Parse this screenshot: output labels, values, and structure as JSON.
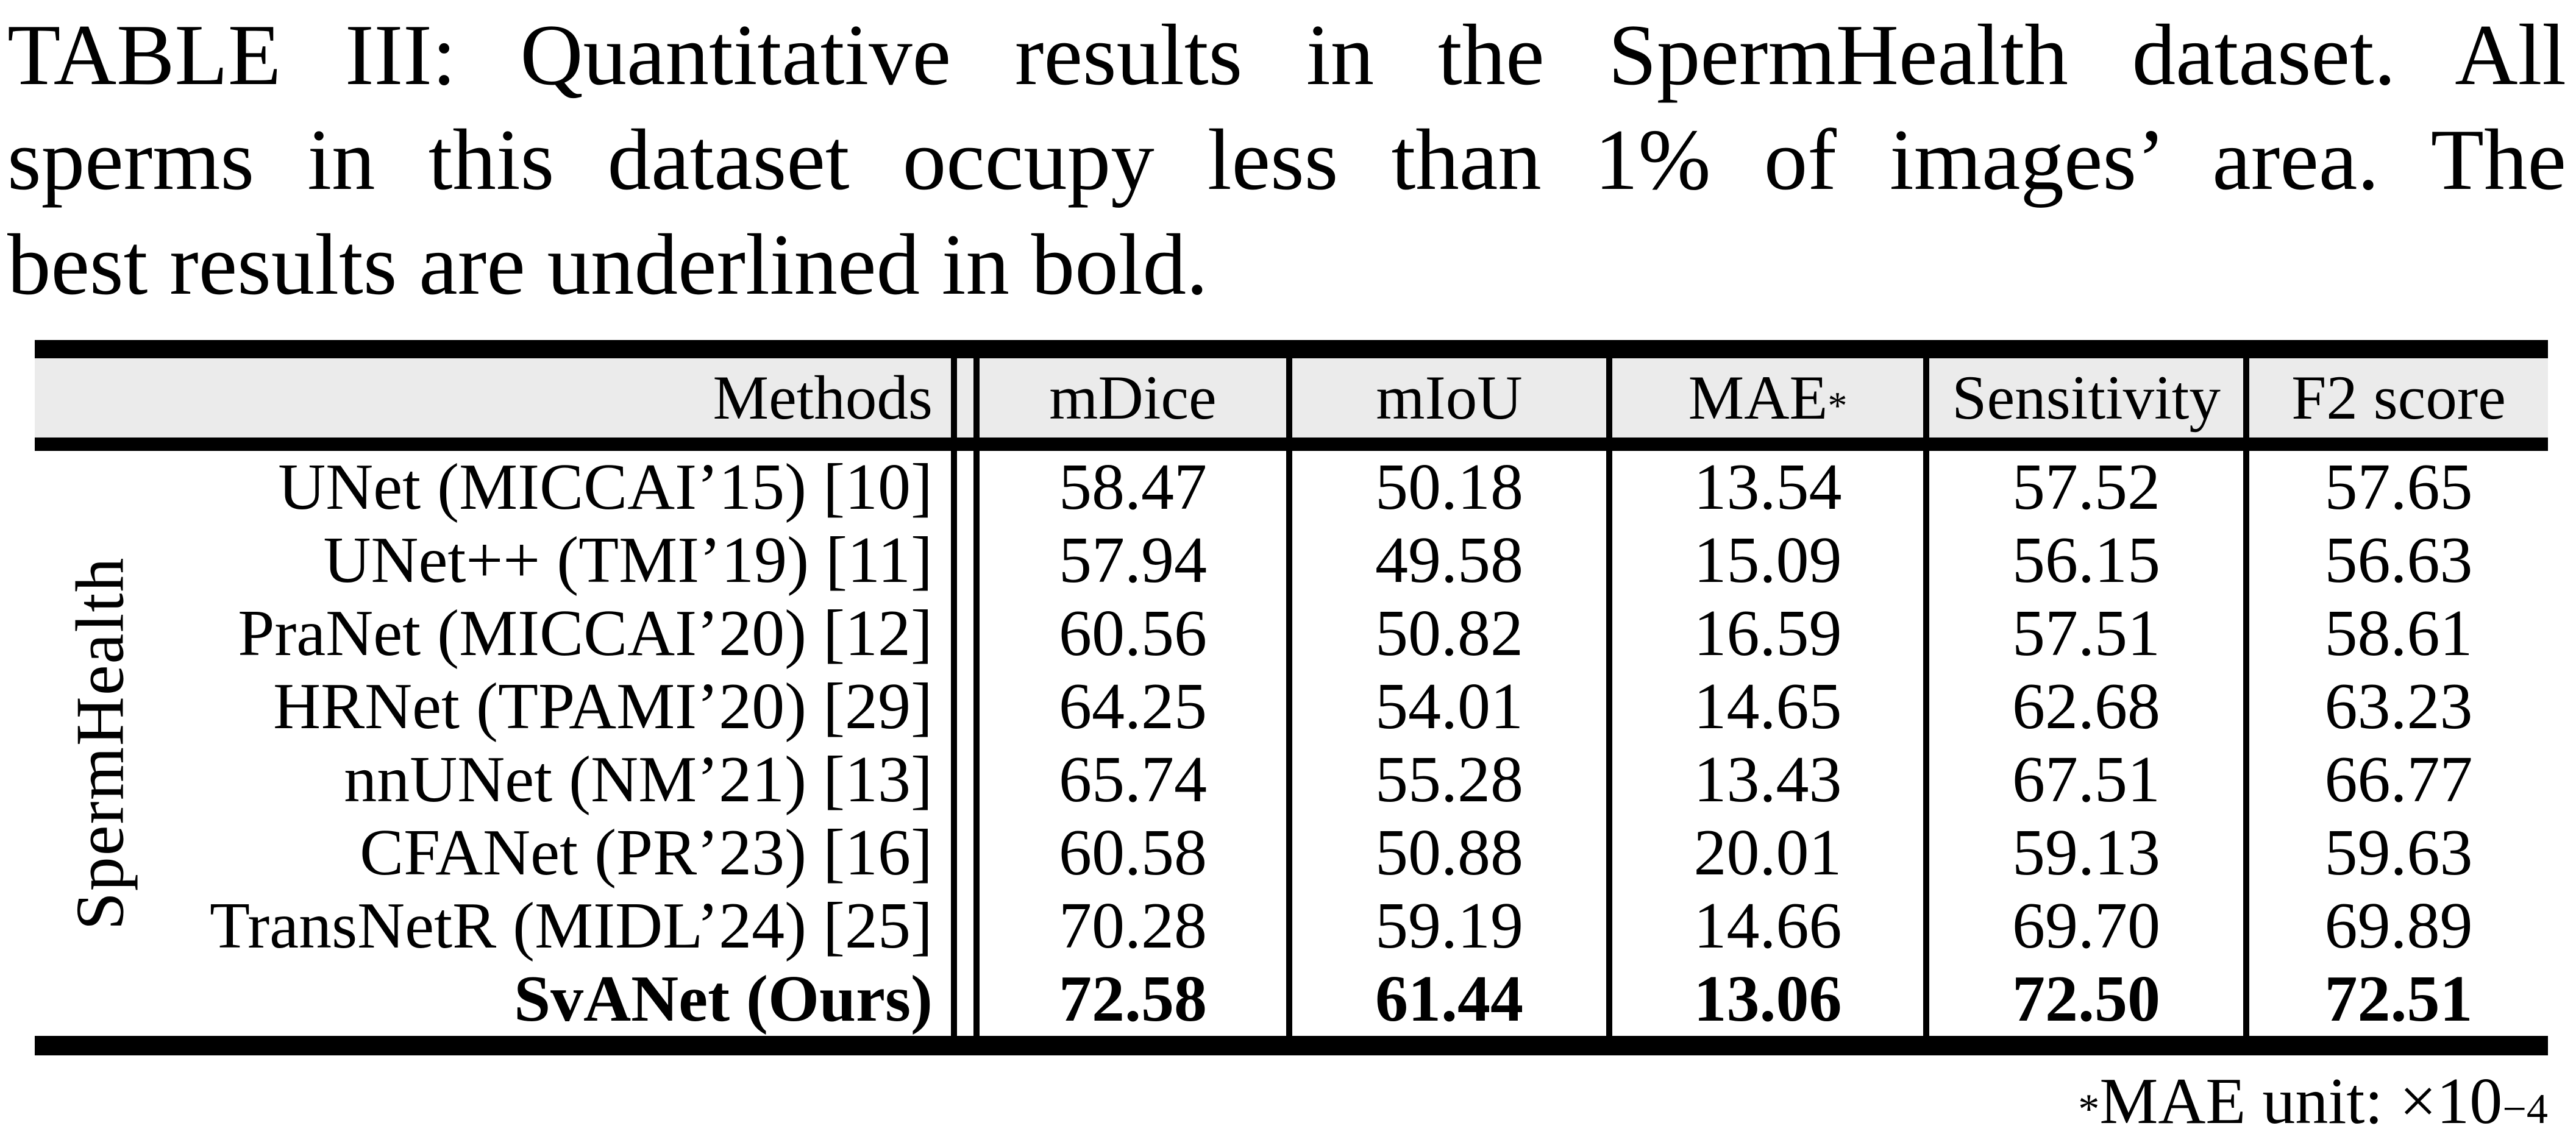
{
  "caption": {
    "lines": [
      "TABLE III: Quantitative results in the SpermHealth dataset. All",
      "sperms in this dataset occupy less than 1% of images’ area. The",
      "best results are underlined in bold."
    ]
  },
  "table": {
    "dataset_label": "SpermHealth",
    "columns": [
      {
        "label": "Methods"
      },
      {
        "label": "mDice"
      },
      {
        "label": "mIoU"
      },
      {
        "label": "MAE",
        "sup": "*"
      },
      {
        "label": "Sensitivity"
      },
      {
        "label": "F2 score"
      }
    ],
    "rows": [
      {
        "method": "UNet (MICCAI’15) [10]",
        "bold": false,
        "values": [
          "58.47",
          "50.18",
          "13.54",
          "57.52",
          "57.65"
        ]
      },
      {
        "method": "UNet++ (TMI’19) [11]",
        "bold": false,
        "values": [
          "57.94",
          "49.58",
          "15.09",
          "56.15",
          "56.63"
        ]
      },
      {
        "method": "PraNet (MICCAI’20) [12]",
        "bold": false,
        "values": [
          "60.56",
          "50.82",
          "16.59",
          "57.51",
          "58.61"
        ]
      },
      {
        "method": "HRNet (TPAMI’20) [29]",
        "bold": false,
        "values": [
          "64.25",
          "54.01",
          "14.65",
          "62.68",
          "63.23"
        ]
      },
      {
        "method": "nnUNet (NM’21) [13]",
        "bold": false,
        "values": [
          "65.74",
          "55.28",
          "13.43",
          "67.51",
          "66.77"
        ]
      },
      {
        "method": "CFANet (PR’23) [16]",
        "bold": false,
        "values": [
          "60.58",
          "50.88",
          "20.01",
          "59.13",
          "59.63"
        ]
      },
      {
        "method": "TransNetR (MIDL’24) [25]",
        "bold": false,
        "values": [
          "70.28",
          "59.19",
          "14.66",
          "69.70",
          "69.89"
        ]
      },
      {
        "method": "SvANet (Ours)",
        "bold": true,
        "values": [
          "72.58",
          "61.44",
          "13.06",
          "72.50",
          "72.51"
        ]
      }
    ]
  },
  "footnote": {
    "sup": "*",
    "text": "MAE unit: ×10",
    "exponent": "−4"
  },
  "colors": {
    "header_bg": "#EBEBEB",
    "rule": "#000000",
    "text": "#000000"
  }
}
